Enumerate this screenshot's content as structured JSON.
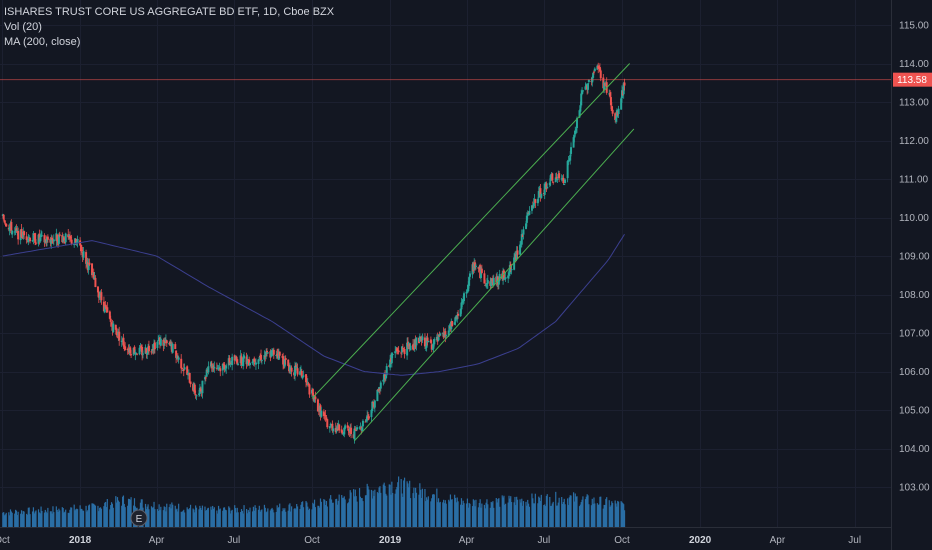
{
  "legend": {
    "title": "ISHARES TRUST CORE US AGGREGATE BD ETF, 1D, Cboe BZX",
    "vol": "Vol (20)",
    "ma": "MA (200, close)"
  },
  "colors": {
    "background": "#131722",
    "up": "#26a69a",
    "down": "#ef5350",
    "ma": "#3b3f8f",
    "channel": "#4caf50",
    "volume": "#2a6ea5",
    "priceLine": "#ef5350",
    "grid": "#1c2030",
    "axisBorder": "#2a2e39"
  },
  "event_marker": {
    "label": "E"
  },
  "chart_data": {
    "type": "candlestick",
    "y_axis": {
      "ticks": [
        "115.00",
        "114.00",
        "113.00",
        "112.00",
        "111.00",
        "110.00",
        "109.00",
        "108.00",
        "107.00",
        "106.00",
        "105.00",
        "104.00",
        "103.00"
      ],
      "range": [
        103.0,
        115.0
      ]
    },
    "x_axis": {
      "ticks": [
        {
          "label": "Oct",
          "bold": false
        },
        {
          "label": "2018",
          "bold": true
        },
        {
          "label": "Apr",
          "bold": false
        },
        {
          "label": "Jul",
          "bold": false
        },
        {
          "label": "Oct",
          "bold": false
        },
        {
          "label": "2019",
          "bold": true
        },
        {
          "label": "Apr",
          "bold": false
        },
        {
          "label": "Jul",
          "bold": false
        },
        {
          "label": "Oct",
          "bold": false
        },
        {
          "label": "2020",
          "bold": true
        },
        {
          "label": "Apr",
          "bold": false
        },
        {
          "label": "Jul",
          "bold": false
        }
      ]
    },
    "last_price": "113.58",
    "series": [
      {
        "name": "price",
        "anchors": [
          [
            "2017-10-02",
            110.0
          ],
          [
            "2017-10-15",
            109.6
          ],
          [
            "2017-11-01",
            109.5
          ],
          [
            "2017-11-20",
            109.4
          ],
          [
            "2017-12-10",
            109.5
          ],
          [
            "2017-12-31",
            109.3
          ],
          [
            "2018-01-15",
            108.5
          ],
          [
            "2018-02-05",
            107.3
          ],
          [
            "2018-02-25",
            106.6
          ],
          [
            "2018-03-15",
            106.5
          ],
          [
            "2018-04-05",
            106.8
          ],
          [
            "2018-04-20",
            106.6
          ],
          [
            "2018-05-10",
            105.8
          ],
          [
            "2018-05-20",
            105.3
          ],
          [
            "2018-06-01",
            106.2
          ],
          [
            "2018-06-15",
            106.1
          ],
          [
            "2018-07-01",
            106.3
          ],
          [
            "2018-07-20",
            106.3
          ],
          [
            "2018-08-05",
            106.4
          ],
          [
            "2018-08-20",
            106.5
          ],
          [
            "2018-09-05",
            106.1
          ],
          [
            "2018-09-20",
            105.9
          ],
          [
            "2018-10-05",
            105.2
          ],
          [
            "2018-10-20",
            104.6
          ],
          [
            "2018-11-05",
            104.5
          ],
          [
            "2018-11-20",
            104.4
          ],
          [
            "2018-12-05",
            104.8
          ],
          [
            "2018-12-20",
            105.6
          ],
          [
            "2019-01-05",
            106.5
          ],
          [
            "2019-01-20",
            106.6
          ],
          [
            "2019-02-05",
            106.8
          ],
          [
            "2019-02-20",
            106.7
          ],
          [
            "2019-03-10",
            107.0
          ],
          [
            "2019-03-25",
            107.6
          ],
          [
            "2019-04-10",
            108.8
          ],
          [
            "2019-04-25",
            108.3
          ],
          [
            "2019-05-10",
            108.4
          ],
          [
            "2019-05-25",
            108.7
          ],
          [
            "2019-06-10",
            109.9
          ],
          [
            "2019-06-25",
            110.6
          ],
          [
            "2019-07-10",
            111.0
          ],
          [
            "2019-07-25",
            111.0
          ],
          [
            "2019-08-05",
            112.0
          ],
          [
            "2019-08-15",
            113.2
          ],
          [
            "2019-08-25",
            113.6
          ],
          [
            "2019-09-01",
            114.0
          ],
          [
            "2019-09-08",
            113.5
          ],
          [
            "2019-09-15",
            113.3
          ],
          [
            "2019-09-22",
            112.4
          ],
          [
            "2019-09-29",
            113.0
          ],
          [
            "2019-10-05",
            113.58
          ]
        ]
      },
      {
        "name": "ma_200",
        "anchors": [
          [
            "2017-10-02",
            109.0
          ],
          [
            "2018-01-15",
            109.4
          ],
          [
            "2018-04-01",
            109.0
          ],
          [
            "2018-06-01",
            108.2
          ],
          [
            "2018-08-15",
            107.3
          ],
          [
            "2018-10-15",
            106.4
          ],
          [
            "2018-12-01",
            106.0
          ],
          [
            "2019-01-15",
            105.9
          ],
          [
            "2019-03-01",
            106.0
          ],
          [
            "2019-04-15",
            106.2
          ],
          [
            "2019-06-01",
            106.6
          ],
          [
            "2019-07-15",
            107.3
          ],
          [
            "2019-08-15",
            108.1
          ],
          [
            "2019-09-15",
            108.9
          ],
          [
            "2019-10-05",
            109.6
          ]
        ]
      },
      {
        "name": "channel_upper",
        "anchors": [
          [
            "2018-10-01",
            105.3
          ],
          [
            "2019-10-10",
            114.0
          ]
        ]
      },
      {
        "name": "channel_lower",
        "anchors": [
          [
            "2018-11-20",
            104.2
          ],
          [
            "2019-10-15",
            112.3
          ]
        ]
      },
      {
        "name": "volume",
        "anchors": [
          [
            "2017-10-02",
            0.3
          ],
          [
            "2018-01-15",
            0.4
          ],
          [
            "2018-02-20",
            0.55
          ],
          [
            "2018-04-01",
            0.45
          ],
          [
            "2018-06-01",
            0.35
          ],
          [
            "2018-08-01",
            0.38
          ],
          [
            "2018-10-01",
            0.45
          ],
          [
            "2018-12-01",
            0.7
          ],
          [
            "2019-01-01",
            0.9
          ],
          [
            "2019-02-15",
            0.7
          ],
          [
            "2019-04-01",
            0.5
          ],
          [
            "2019-06-01",
            0.55
          ],
          [
            "2019-08-01",
            0.6
          ],
          [
            "2019-10-05",
            0.45
          ]
        ]
      }
    ]
  }
}
